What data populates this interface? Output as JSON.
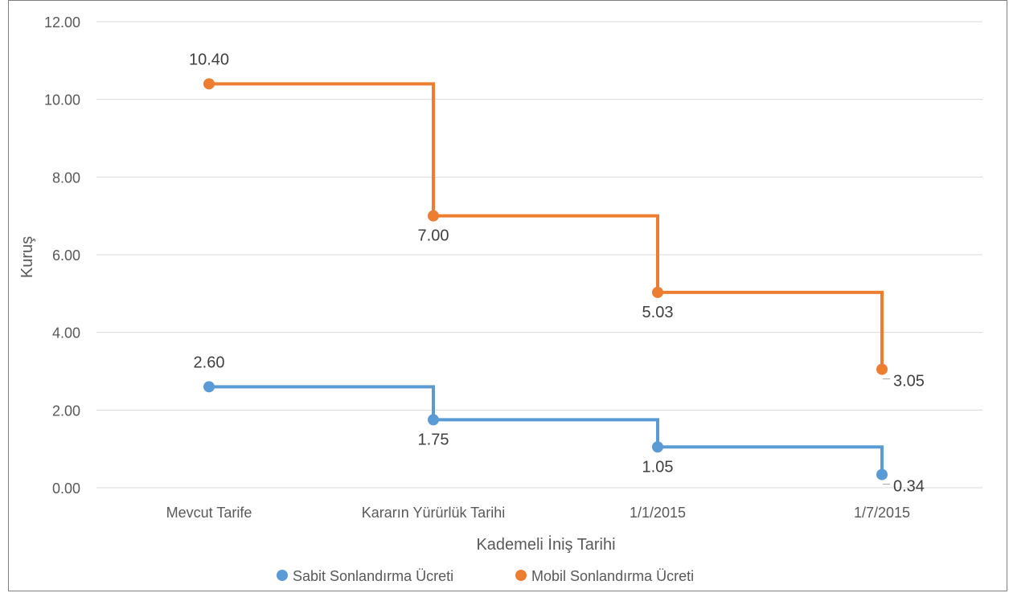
{
  "chart_data": {
    "type": "line",
    "xlabel": "Kademeli İniş Tarihi",
    "ylabel": "Kuruş",
    "ylim": [
      0,
      12
    ],
    "yticks": [
      "0.00",
      "2.00",
      "4.00",
      "6.00",
      "8.00",
      "10.00",
      "12.00"
    ],
    "grid": true,
    "legend_placement": "bottom",
    "categories": [
      "Mevcut Tarife",
      "Kararın Yürürlük Tarihi",
      "1/1/2015",
      "1/7/2015"
    ],
    "series": [
      {
        "name": "Sabit Sonlandırma Ücreti",
        "color": "#5b9bd5",
        "values": [
          2.6,
          1.75,
          1.05,
          0.34
        ],
        "labels": [
          "2.60",
          "1.75",
          "1.05",
          "0.34"
        ]
      },
      {
        "name": "Mobil Sonlandırma Ücreti",
        "color": "#ed7d31",
        "values": [
          10.4,
          7.0,
          5.03,
          3.05
        ],
        "labels": [
          "10.40",
          "7.00",
          "5.03",
          "3.05"
        ]
      }
    ]
  }
}
